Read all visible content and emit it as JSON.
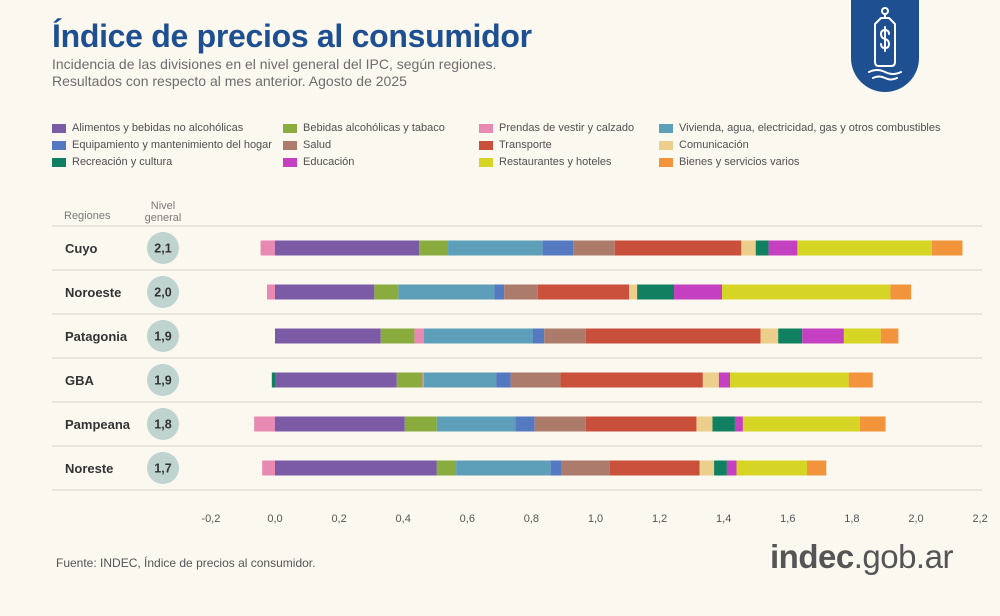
{
  "header": {
    "title": "Índice de precios al consumidor",
    "subtitle_1": "Incidencia de las divisiones en el nivel general del IPC, según regiones.",
    "subtitle_2": "Resultados con respecto al mes anterior. Agosto de 2025"
  },
  "badge": {
    "icon": "price-tag-dollar-icon",
    "color": "#1d4f91"
  },
  "footer": {
    "source": "Fuente: INDEC, Índice de precios al consumidor.",
    "brand_strong": "indec",
    "brand_rest": ".gob.ar"
  },
  "chart_data": {
    "type": "bar",
    "orientation": "horizontal",
    "stacked": true,
    "column_headers": {
      "regions": "Regiones",
      "level_line1": "Nivel",
      "level_line2": "general"
    },
    "categories": [
      "Cuyo",
      "Noroeste",
      "Patagonia",
      "GBA",
      "Pampeana",
      "Noreste"
    ],
    "nivel_general": [
      "2,1",
      "2,0",
      "1,9",
      "1,9",
      "1,8",
      "1,7"
    ],
    "xlim": [
      -0.2,
      2.2
    ],
    "xticks": [
      -0.2,
      0.0,
      0.2,
      0.4,
      0.6,
      0.8,
      1.0,
      1.2,
      1.4,
      1.6,
      1.8,
      2.0,
      2.2
    ],
    "xtick_labels": [
      "-0,2",
      "0,0",
      "0,2",
      "0,4",
      "0,6",
      "0,8",
      "1,0",
      "1,2",
      "1,4",
      "1,6",
      "1,8",
      "2,0",
      "2,2"
    ],
    "grid": false,
    "legend_position": "top",
    "series": [
      {
        "name": "Alimentos y bebidas no alcohólicas",
        "color": "#7b5ba6",
        "values": [
          0.45,
          0.31,
          0.33,
          0.38,
          0.405,
          0.505
        ]
      },
      {
        "name": "Bebidas alcohólicas y tabaco",
        "color": "#8aac3e",
        "values": [
          0.09,
          0.075,
          0.105,
          0.08,
          0.1,
          0.06
        ]
      },
      {
        "name": "Prendas de vestir y calzado",
        "color": "#e889b3",
        "values": [
          -0.045,
          -0.025,
          0.03,
          0.005,
          -0.065,
          -0.04
        ]
      },
      {
        "name": "Vivienda, agua, electricidad, gas y otros combustibles",
        "color": "#5d9eb8",
        "values": [
          0.295,
          0.3,
          0.34,
          0.225,
          0.245,
          0.295
        ]
      },
      {
        "name": "Equipamiento y mantenimiento del hogar",
        "color": "#5479c0",
        "values": [
          0.095,
          0.03,
          0.035,
          0.045,
          0.06,
          0.035
        ]
      },
      {
        "name": "Salud",
        "color": "#ad7b6c",
        "values": [
          0.13,
          0.105,
          0.13,
          0.155,
          0.16,
          0.15
        ]
      },
      {
        "name": "Transporte",
        "color": "#c9513c",
        "values": [
          0.395,
          0.285,
          0.545,
          0.445,
          0.345,
          0.28
        ]
      },
      {
        "name": "Comunicación",
        "color": "#eccf8c",
        "values": [
          0.045,
          0.025,
          0.055,
          0.05,
          0.05,
          0.045
        ]
      },
      {
        "name": "Recreación y cultura",
        "color": "#108060",
        "values": [
          0.04,
          0.115,
          0.075,
          -0.01,
          0.07,
          0.04
        ]
      },
      {
        "name": "Educación",
        "color": "#c440c0",
        "values": [
          0.09,
          0.15,
          0.13,
          0.035,
          0.025,
          0.03
        ]
      },
      {
        "name": "Restaurantes y hoteles",
        "color": "#d6d425",
        "values": [
          0.42,
          0.525,
          0.115,
          0.37,
          0.365,
          0.22
        ]
      },
      {
        "name": "Bienes y servicios varios",
        "color": "#f1943b",
        "values": [
          0.095,
          0.065,
          0.055,
          0.075,
          0.08,
          0.06
        ]
      }
    ]
  }
}
